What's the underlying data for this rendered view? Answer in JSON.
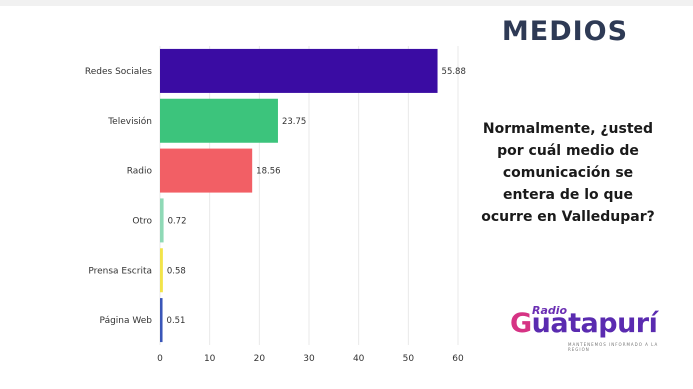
{
  "header": {
    "title": "MEDIOS"
  },
  "question": {
    "text": "Normalmente, ¿usted por cuál medio de comunicación se entera de lo que ocurre en Valledupar?"
  },
  "logo": {
    "small": "Radio",
    "main_first": "G",
    "main_rest": "uatapurí",
    "tagline": "MANTENEMOS INFORMADO A LA REGION"
  },
  "chart_data": {
    "type": "bar",
    "orientation": "horizontal",
    "categories": [
      "Redes Sociales",
      "Televisión",
      "Radio",
      "Otro",
      "Prensa Escrita",
      "Página Web"
    ],
    "values": [
      55.88,
      23.75,
      18.56,
      0.72,
      0.58,
      0.51
    ],
    "value_labels": [
      "55.88",
      "23.75",
      "18.56",
      "0.72",
      "0.58",
      "0.51"
    ],
    "colors": [
      "#3a0ca3",
      "#3cc47c",
      "#f25f65",
      "#8fd9b6",
      "#f2e44a",
      "#3a56b8"
    ],
    "xlim": [
      0,
      60
    ],
    "xticks": [
      0,
      10,
      20,
      30,
      40,
      50,
      60
    ],
    "grid": true
  }
}
